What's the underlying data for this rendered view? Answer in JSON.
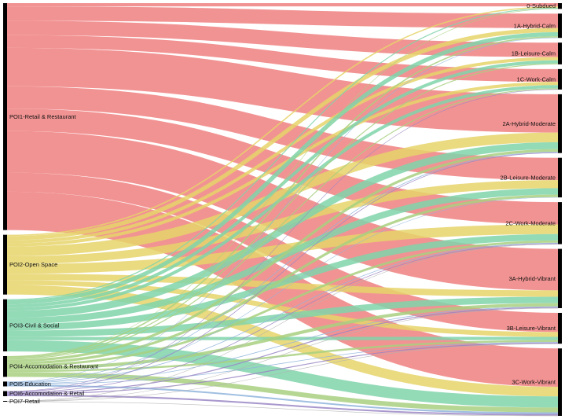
{
  "sources": [
    {
      "id": "poi1",
      "label": "POI1-Retail & Restaurant",
      "color": "#f08080"
    },
    {
      "id": "poi2",
      "label": "POI2-Open Space",
      "color": "#e6d46a"
    },
    {
      "id": "poi3",
      "label": "POI3-Civil & Social",
      "color": "#80d4aa"
    },
    {
      "id": "poi4",
      "label": "POI4-Accomodation & Restaurant",
      "color": "#a8d080"
    },
    {
      "id": "poi5",
      "label": "POI5-Education",
      "color": "#8fb4dc"
    },
    {
      "id": "poi6",
      "label": "POI6-Accomodation & Retail",
      "color": "#9a86c4"
    },
    {
      "id": "poi7",
      "label": "POI7-Retail",
      "color": "#b0b0b0"
    }
  ],
  "targets": [
    {
      "id": "t0",
      "label": "0-Subdued"
    },
    {
      "id": "t1a",
      "label": "1A-Hybrid-Calm"
    },
    {
      "id": "t1b",
      "label": "1B-Leisure-Calm"
    },
    {
      "id": "t1c",
      "label": "1C-Work-Calm"
    },
    {
      "id": "t2a",
      "label": "2A-Hybrid-Moderate"
    },
    {
      "id": "t2b",
      "label": "2B-Leisure-Moderate"
    },
    {
      "id": "t2c",
      "label": "2C-Work-Moderate"
    },
    {
      "id": "t3a",
      "label": "3A-Hybrid-Vibrant"
    },
    {
      "id": "t3b",
      "label": "3B-Leisure-Vibrant"
    },
    {
      "id": "t3c",
      "label": "3C-Work-Vibrant"
    }
  ],
  "flows": [
    {
      "source": "poi1",
      "target": "t0",
      "value": 1.0
    },
    {
      "source": "poi1",
      "target": "t1a",
      "value": 4.5
    },
    {
      "source": "poi1",
      "target": "t1b",
      "value": 4.5
    },
    {
      "source": "poi1",
      "target": "t1c",
      "value": 4.0
    },
    {
      "source": "poi1",
      "target": "t2a",
      "value": 12.0
    },
    {
      "source": "poi1",
      "target": "t2b",
      "value": 7.0
    },
    {
      "source": "poi1",
      "target": "t2c",
      "value": 7.0
    },
    {
      "source": "poi1",
      "target": "t3a",
      "value": 13.0
    },
    {
      "source": "poi1",
      "target": "t3b",
      "value": 6.0
    },
    {
      "source": "poi1",
      "target": "t3c",
      "value": 12.0
    },
    {
      "source": "poi2",
      "target": "t0",
      "value": 0.4
    },
    {
      "source": "poi2",
      "target": "t1a",
      "value": 1.3
    },
    {
      "source": "poi2",
      "target": "t1b",
      "value": 1.0
    },
    {
      "source": "poi2",
      "target": "t1c",
      "value": 1.0
    },
    {
      "source": "poi2",
      "target": "t2a",
      "value": 3.0
    },
    {
      "source": "poi2",
      "target": "t2b",
      "value": 2.5
    },
    {
      "source": "poi2",
      "target": "t2c",
      "value": 3.0
    },
    {
      "source": "poi2",
      "target": "t3a",
      "value": 2.0
    },
    {
      "source": "poi2",
      "target": "t3b",
      "value": 1.5
    },
    {
      "source": "poi2",
      "target": "t3c",
      "value": 3.0
    },
    {
      "source": "poi3",
      "target": "t0",
      "value": 0.3
    },
    {
      "source": "poi3",
      "target": "t1a",
      "value": 1.3
    },
    {
      "source": "poi3",
      "target": "t1b",
      "value": 1.0
    },
    {
      "source": "poi3",
      "target": "t1c",
      "value": 1.0
    },
    {
      "source": "poi3",
      "target": "t2a",
      "value": 2.2
    },
    {
      "source": "poi3",
      "target": "t2b",
      "value": 2.0
    },
    {
      "source": "poi3",
      "target": "t2c",
      "value": 2.0
    },
    {
      "source": "poi3",
      "target": "t3a",
      "value": 2.0
    },
    {
      "source": "poi3",
      "target": "t3b",
      "value": 1.0
    },
    {
      "source": "poi3",
      "target": "t3c",
      "value": 3.5
    },
    {
      "source": "poi4",
      "target": "t0",
      "value": 0.1
    },
    {
      "source": "poi4",
      "target": "t1a",
      "value": 0.4
    },
    {
      "source": "poi4",
      "target": "t1b",
      "value": 0.3
    },
    {
      "source": "poi4",
      "target": "t1c",
      "value": 0.3
    },
    {
      "source": "poi4",
      "target": "t2a",
      "value": 0.8
    },
    {
      "source": "poi4",
      "target": "t2b",
      "value": 0.8
    },
    {
      "source": "poi4",
      "target": "t2c",
      "value": 0.7
    },
    {
      "source": "poi4",
      "target": "t3a",
      "value": 1.0
    },
    {
      "source": "poi4",
      "target": "t3b",
      "value": 0.6
    },
    {
      "source": "poi4",
      "target": "t3c",
      "value": 1.5
    },
    {
      "source": "poi5",
      "target": "t1a",
      "value": 0.1
    },
    {
      "source": "poi5",
      "target": "t2a",
      "value": 0.2
    },
    {
      "source": "poi5",
      "target": "t2b",
      "value": 0.1
    },
    {
      "source": "poi5",
      "target": "t2c",
      "value": 0.2
    },
    {
      "source": "poi5",
      "target": "t3a",
      "value": 0.2
    },
    {
      "source": "poi5",
      "target": "t3b",
      "value": 0.2
    },
    {
      "source": "poi5",
      "target": "t3c",
      "value": 0.5
    },
    {
      "source": "poi6",
      "target": "t1c",
      "value": 0.1
    },
    {
      "source": "poi6",
      "target": "t2a",
      "value": 0.2
    },
    {
      "source": "poi6",
      "target": "t2c",
      "value": 0.2
    },
    {
      "source": "poi6",
      "target": "t3a",
      "value": 0.3
    },
    {
      "source": "poi6",
      "target": "t3b",
      "value": 0.3
    },
    {
      "source": "poi6",
      "target": "t3c",
      "value": 0.5
    },
    {
      "source": "poi7",
      "target": "t2c",
      "value": 0.05
    },
    {
      "source": "poi7",
      "target": "t3a",
      "value": 0.05
    },
    {
      "source": "poi7",
      "target": "t3b",
      "value": 0.05
    },
    {
      "source": "poi7",
      "target": "t3c",
      "value": 0.1
    }
  ]
}
